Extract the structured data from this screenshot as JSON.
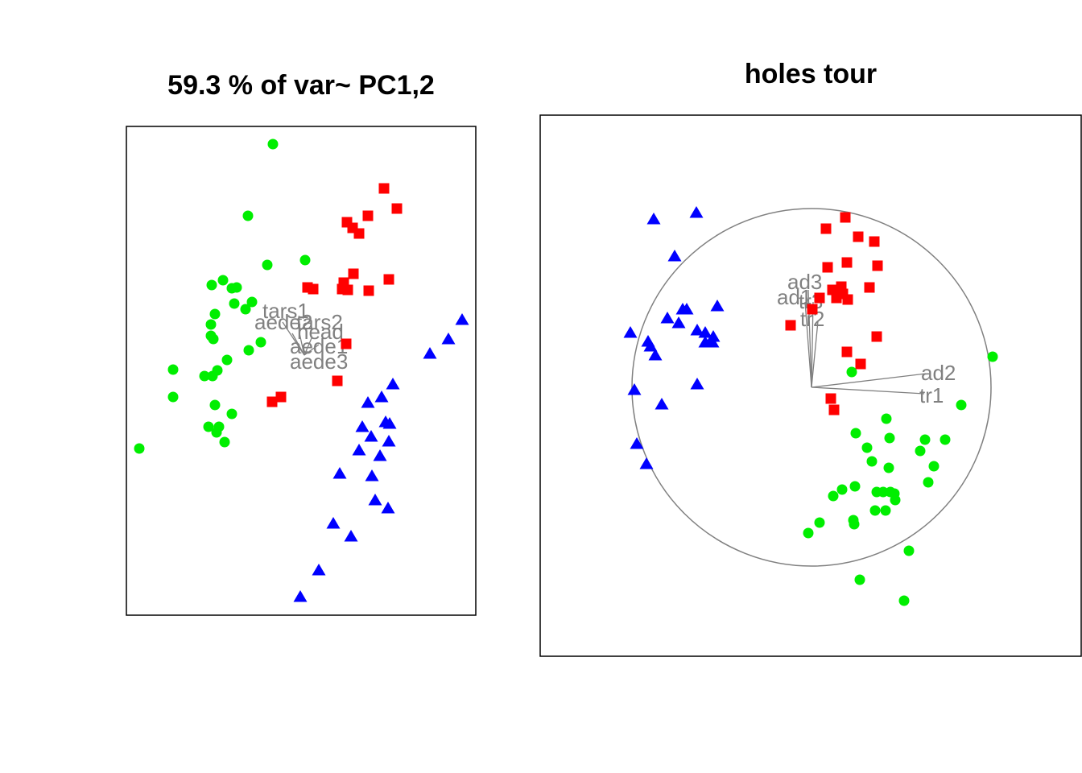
{
  "chart_data": [
    {
      "type": "scatter",
      "title": "59.3 % of var~ PC1,2",
      "xlabel": "",
      "ylabel": "",
      "colors": {
        "red": "#ff0000",
        "green": "#00ee00",
        "blue": "#0000ff"
      },
      "series": [
        {
          "color": "red",
          "marker": "square",
          "points": [
            [
              477,
              234
            ],
            [
              493,
              259
            ],
            [
              431,
              276
            ],
            [
              457,
              268
            ],
            [
              446,
              290
            ],
            [
              438,
              283
            ],
            [
              439,
              340
            ],
            [
              483,
              347
            ],
            [
              382,
              357
            ],
            [
              389,
              359
            ],
            [
              427,
              351
            ],
            [
              425,
              359
            ],
            [
              432,
              360
            ],
            [
              458,
              361
            ],
            [
              430,
              427
            ],
            [
              419,
              473
            ],
            [
              349,
              493
            ],
            [
              338,
              499
            ]
          ]
        },
        {
          "color": "green",
          "marker": "circle",
          "points": [
            [
              339,
              179
            ],
            [
              308,
              268
            ],
            [
              332,
              329
            ],
            [
              379,
              323
            ],
            [
              263,
              354
            ],
            [
              277,
              348
            ],
            [
              288,
              358
            ],
            [
              294,
              357
            ],
            [
              267,
              390
            ],
            [
              291,
              377
            ],
            [
              305,
              384
            ],
            [
              313,
              375
            ],
            [
              262,
              403
            ],
            [
              262,
              417
            ],
            [
              265,
              421
            ],
            [
              324,
              425
            ],
            [
              309,
              435
            ],
            [
              282,
              447
            ],
            [
              270,
              460
            ],
            [
              254,
              467
            ],
            [
              215,
              459
            ],
            [
              264,
              467
            ],
            [
              215,
              493
            ],
            [
              267,
              503
            ],
            [
              288,
              514
            ],
            [
              259,
              530
            ],
            [
              272,
              530
            ],
            [
              269,
              537
            ],
            [
              279,
              549
            ],
            [
              173,
              557
            ]
          ]
        },
        {
          "color": "blue",
          "marker": "triangle",
          "points": [
            [
              574,
              397
            ],
            [
              557,
              421
            ],
            [
              534,
              439
            ],
            [
              488,
              477
            ],
            [
              474,
              493
            ],
            [
              457,
              500
            ],
            [
              450,
              530
            ],
            [
              479,
              524
            ],
            [
              484,
              526
            ],
            [
              461,
              542
            ],
            [
              446,
              559
            ],
            [
              483,
              548
            ],
            [
              472,
              566
            ],
            [
              422,
              588
            ],
            [
              462,
              591
            ],
            [
              466,
              621
            ],
            [
              482,
              631
            ],
            [
              414,
              650
            ],
            [
              436,
              666
            ],
            [
              396,
              708
            ],
            [
              373,
              741
            ]
          ]
        }
      ],
      "axis_labels": [
        "tars1",
        "aede2",
        "tars2",
        "head",
        "aede1",
        "aede3"
      ]
    },
    {
      "type": "scatter",
      "title": "holes tour",
      "xlabel": "",
      "ylabel": "",
      "colors": {
        "red": "#ff0000",
        "green": "#00ee00",
        "blue": "#0000ff"
      },
      "series": [
        {
          "color": "red",
          "marker": "square",
          "points": [
            [
              1050,
              270
            ],
            [
              1026,
              284
            ],
            [
              1066,
              294
            ],
            [
              1086,
              300
            ],
            [
              1052,
              326
            ],
            [
              1090,
              330
            ],
            [
              1028,
              332
            ],
            [
              1080,
              357
            ],
            [
              1034,
              360
            ],
            [
              1045,
              356
            ],
            [
              1047,
              365
            ],
            [
              1039,
              370
            ],
            [
              1053,
              372
            ],
            [
              1018,
              370
            ],
            [
              1009,
              384
            ],
            [
              982,
              404
            ],
            [
              1089,
              418
            ],
            [
              1052,
              437
            ],
            [
              1069,
              452
            ],
            [
              1032,
              495
            ],
            [
              1036,
              509
            ]
          ]
        },
        {
          "color": "green",
          "marker": "circle",
          "points": [
            [
              1233,
              443
            ],
            [
              1058,
              462
            ],
            [
              1194,
              503
            ],
            [
              1101,
              520
            ],
            [
              1063,
              538
            ],
            [
              1105,
              544
            ],
            [
              1149,
              546
            ],
            [
              1174,
              546
            ],
            [
              1077,
              556
            ],
            [
              1143,
              560
            ],
            [
              1160,
              579
            ],
            [
              1083,
              573
            ],
            [
              1104,
              581
            ],
            [
              1153,
              599
            ],
            [
              1046,
              608
            ],
            [
              1035,
              616
            ],
            [
              1062,
              604
            ],
            [
              1089,
              611
            ],
            [
              1097,
              611
            ],
            [
              1106,
              611
            ],
            [
              1111,
              613
            ],
            [
              1112,
              621
            ],
            [
              1087,
              634
            ],
            [
              1100,
              634
            ],
            [
              1060,
              646
            ],
            [
              1061,
              651
            ],
            [
              1018,
              649
            ],
            [
              1004,
              662
            ],
            [
              1129,
              684
            ],
            [
              1068,
              720
            ],
            [
              1123,
              746
            ]
          ]
        },
        {
          "color": "blue",
          "marker": "triangle",
          "points": [
            [
              812,
              272
            ],
            [
              865,
              264
            ],
            [
              838,
              318
            ],
            [
              891,
              380
            ],
            [
              853,
              384
            ],
            [
              848,
              384
            ],
            [
              829,
              395
            ],
            [
              843,
              401
            ],
            [
              866,
              410
            ],
            [
              876,
              413
            ],
            [
              886,
              418
            ],
            [
              876,
              425
            ],
            [
              885,
              425
            ],
            [
              783,
              413
            ],
            [
              805,
              424
            ],
            [
              808,
              430
            ],
            [
              814,
              441
            ],
            [
              866,
              477
            ],
            [
              788,
              484
            ],
            [
              822,
              502
            ],
            [
              791,
              551
            ],
            [
              803,
              576
            ]
          ]
        }
      ],
      "axis_labels": [
        "ad3",
        "ad1",
        "tr3",
        "tr2",
        "ad2",
        "tr1"
      ]
    }
  ]
}
